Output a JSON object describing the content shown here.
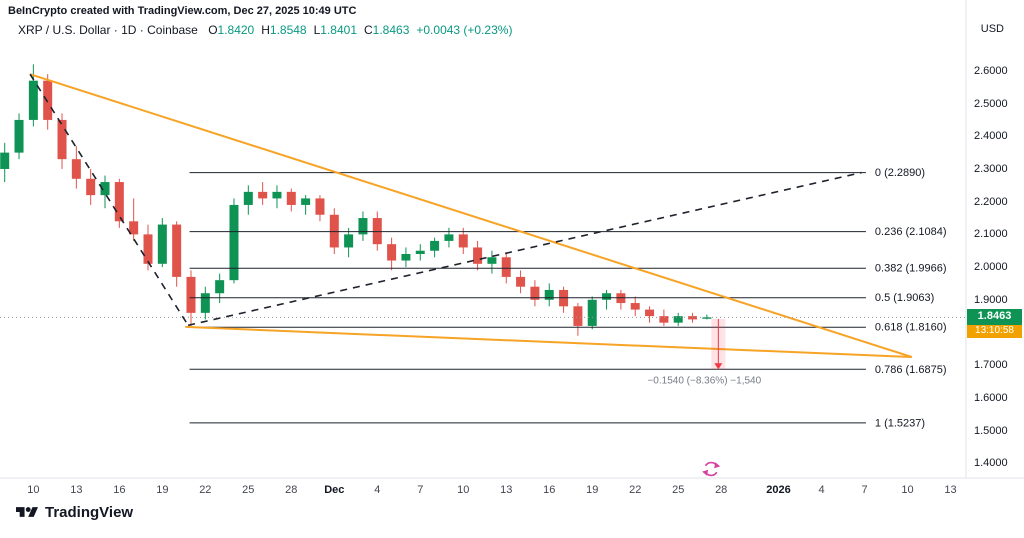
{
  "attribution": "BeInCrypto created with TradingView.com, Dec 27, 2025 10:49 UTC",
  "header": {
    "symbol_line": "XRP / U.S. Dollar · 1D · Coinbase",
    "ohlc": [
      {
        "k": "O",
        "v": "1.8420"
      },
      {
        "k": "H",
        "v": "1.8548"
      },
      {
        "k": "L",
        "v": "1.8401"
      },
      {
        "k": "C",
        "v": "1.8463"
      }
    ],
    "change": "+0.0043 (+0.23%)"
  },
  "axis": {
    "currency": "USD",
    "y_ticks": [
      "2.6000",
      "2.5000",
      "2.4000",
      "2.3000",
      "2.2000",
      "2.1000",
      "2.0000",
      "1.9000",
      "1.8000",
      "1.7000",
      "1.6000",
      "1.5000",
      "1.4000"
    ],
    "x_ticks": [
      {
        "idx": 2,
        "label": "10"
      },
      {
        "idx": 5,
        "label": "13"
      },
      {
        "idx": 8,
        "label": "16"
      },
      {
        "idx": 11,
        "label": "19"
      },
      {
        "idx": 14,
        "label": "22"
      },
      {
        "idx": 17,
        "label": "25"
      },
      {
        "idx": 20,
        "label": "28"
      },
      {
        "idx": 23,
        "label": "Dec",
        "bold": true
      },
      {
        "idx": 26,
        "label": "4"
      },
      {
        "idx": 29,
        "label": "7"
      },
      {
        "idx": 32,
        "label": "10"
      },
      {
        "idx": 35,
        "label": "13"
      },
      {
        "idx": 38,
        "label": "16"
      },
      {
        "idx": 41,
        "label": "19"
      },
      {
        "idx": 44,
        "label": "22"
      },
      {
        "idx": 47,
        "label": "25"
      },
      {
        "idx": 50,
        "label": "28"
      },
      {
        "idx": 54,
        "label": "2026",
        "bold": true
      },
      {
        "idx": 57,
        "label": "4"
      },
      {
        "idx": 60,
        "label": "7"
      },
      {
        "idx": 63,
        "label": "10"
      },
      {
        "idx": 66,
        "label": "13"
      }
    ]
  },
  "price_label": {
    "value": "1.8463",
    "countdown": "13:10:58"
  },
  "measurement": {
    "label": "−0.1540 (−8.36%) −1,540",
    "from": 1.8415,
    "to": 1.6875,
    "idx": 49.8
  },
  "footer": {
    "logo_text": "TradingView"
  },
  "chart_data": {
    "type": "candlestick",
    "title": "XRP / U.S. Dollar · 1D · Coinbase",
    "ylim": [
      1.355,
      2.725
    ],
    "last_price": 1.8463,
    "geometry": {
      "x0": 4.7,
      "step": 14.33,
      "top": 30,
      "bottom": 478,
      "plot_right": 965
    },
    "refresh_icon": {
      "idx": 49.3,
      "y": 469
    },
    "colors": {
      "up": "#0e9355",
      "down": "#e0534b",
      "fib": "#1e222d",
      "trend": "#f7a325",
      "dashed": "#1e222d",
      "last_line": "#9598a1",
      "measure": "#f23645",
      "refresh": "#d6409f",
      "text": "#131722",
      "muted": "#787b86",
      "badge_bg": "#0e9355",
      "countdown_bg": "#f2a200",
      "ohlc_green": "#089981"
    },
    "fib_x": [
      12.9,
      60.1
    ],
    "fib_levels": [
      {
        "label": "0 (2.2890)",
        "value": 2.289
      },
      {
        "label": "0.236 (2.1084)",
        "value": 2.1084
      },
      {
        "label": "0.382 (1.9966)",
        "value": 1.9966
      },
      {
        "label": "0.5 (1.9063)",
        "value": 1.9063
      },
      {
        "label": "0.618 (1.8160)",
        "value": 1.816
      },
      {
        "label": "0.786 (1.6875)",
        "value": 1.6875
      },
      {
        "label": "1 (1.5237)",
        "value": 1.5237
      }
    ],
    "trendlines": [
      {
        "name": "wedge-upper-trendline",
        "color": "trend",
        "width": 2,
        "dash": "",
        "points": [
          [
            1.77,
            2.59
          ],
          [
            63.3,
            1.725
          ]
        ]
      },
      {
        "name": "wedge-lower-trendline",
        "color": "trend",
        "width": 2,
        "dash": "",
        "points": [
          [
            12.6,
            1.817
          ],
          [
            63.3,
            1.725
          ]
        ]
      },
      {
        "name": "dashed-decline-line",
        "color": "dashed",
        "width": 1.6,
        "dash": "7 6",
        "points": [
          [
            1.77,
            2.59
          ],
          [
            12.8,
            1.822
          ]
        ]
      },
      {
        "name": "dashed-rise-line",
        "color": "dashed",
        "width": 1.6,
        "dash": "7 6",
        "points": [
          [
            12.8,
            1.822
          ],
          [
            59.8,
            2.289
          ]
        ]
      }
    ],
    "candles": [
      {
        "t": "Nov 8",
        "o": 2.3,
        "h": 2.38,
        "l": 2.26,
        "c": 2.35
      },
      {
        "t": "Nov 9",
        "o": 2.35,
        "h": 2.47,
        "l": 2.33,
        "c": 2.45
      },
      {
        "t": "Nov 10",
        "o": 2.45,
        "h": 2.62,
        "l": 2.43,
        "c": 2.57
      },
      {
        "t": "Nov 11",
        "o": 2.57,
        "h": 2.59,
        "l": 2.42,
        "c": 2.45
      },
      {
        "t": "Nov 12",
        "o": 2.45,
        "h": 2.47,
        "l": 2.3,
        "c": 2.33
      },
      {
        "t": "Nov 13",
        "o": 2.33,
        "h": 2.37,
        "l": 2.24,
        "c": 2.27
      },
      {
        "t": "Nov 14",
        "o": 2.27,
        "h": 2.3,
        "l": 2.19,
        "c": 2.22
      },
      {
        "t": "Nov 15",
        "o": 2.22,
        "h": 2.28,
        "l": 2.18,
        "c": 2.26
      },
      {
        "t": "Nov 16",
        "o": 2.26,
        "h": 2.27,
        "l": 2.12,
        "c": 2.14
      },
      {
        "t": "Nov 17",
        "o": 2.14,
        "h": 2.21,
        "l": 2.08,
        "c": 2.1
      },
      {
        "t": "Nov 18",
        "o": 2.1,
        "h": 2.13,
        "l": 1.99,
        "c": 2.01
      },
      {
        "t": "Nov 19",
        "o": 2.01,
        "h": 2.15,
        "l": 2.0,
        "c": 2.13
      },
      {
        "t": "Nov 20",
        "o": 2.13,
        "h": 2.14,
        "l": 1.94,
        "c": 1.97
      },
      {
        "t": "Nov 21",
        "o": 1.97,
        "h": 1.99,
        "l": 1.82,
        "c": 1.86
      },
      {
        "t": "Nov 22",
        "o": 1.86,
        "h": 1.94,
        "l": 1.84,
        "c": 1.92
      },
      {
        "t": "Nov 23",
        "o": 1.92,
        "h": 1.98,
        "l": 1.89,
        "c": 1.96
      },
      {
        "t": "Nov 24",
        "o": 1.96,
        "h": 2.21,
        "l": 1.95,
        "c": 2.19
      },
      {
        "t": "Nov 25",
        "o": 2.19,
        "h": 2.25,
        "l": 2.16,
        "c": 2.23
      },
      {
        "t": "Nov 26",
        "o": 2.23,
        "h": 2.26,
        "l": 2.19,
        "c": 2.21
      },
      {
        "t": "Nov 27",
        "o": 2.21,
        "h": 2.25,
        "l": 2.18,
        "c": 2.23
      },
      {
        "t": "Nov 28",
        "o": 2.23,
        "h": 2.24,
        "l": 2.17,
        "c": 2.19
      },
      {
        "t": "Nov 29",
        "o": 2.19,
        "h": 2.22,
        "l": 2.16,
        "c": 2.21
      },
      {
        "t": "Nov 30",
        "o": 2.21,
        "h": 2.22,
        "l": 2.14,
        "c": 2.16
      },
      {
        "t": "Dec 1",
        "o": 2.16,
        "h": 2.18,
        "l": 2.04,
        "c": 2.06
      },
      {
        "t": "Dec 2",
        "o": 2.06,
        "h": 2.12,
        "l": 2.03,
        "c": 2.1
      },
      {
        "t": "Dec 3",
        "o": 2.1,
        "h": 2.17,
        "l": 2.08,
        "c": 2.15
      },
      {
        "t": "Dec 4",
        "o": 2.15,
        "h": 2.17,
        "l": 2.05,
        "c": 2.07
      },
      {
        "t": "Dec 5",
        "o": 2.07,
        "h": 2.09,
        "l": 1.99,
        "c": 2.02
      },
      {
        "t": "Dec 6",
        "o": 2.02,
        "h": 2.06,
        "l": 2.0,
        "c": 2.04
      },
      {
        "t": "Dec 7",
        "o": 2.04,
        "h": 2.07,
        "l": 2.02,
        "c": 2.05
      },
      {
        "t": "Dec 8",
        "o": 2.05,
        "h": 2.09,
        "l": 2.03,
        "c": 2.08
      },
      {
        "t": "Dec 9",
        "o": 2.08,
        "h": 2.12,
        "l": 2.06,
        "c": 2.1
      },
      {
        "t": "Dec 10",
        "o": 2.1,
        "h": 2.12,
        "l": 2.04,
        "c": 2.06
      },
      {
        "t": "Dec 11",
        "o": 2.06,
        "h": 2.08,
        "l": 1.99,
        "c": 2.01
      },
      {
        "t": "Dec 12",
        "o": 2.01,
        "h": 2.05,
        "l": 1.98,
        "c": 2.03
      },
      {
        "t": "Dec 13",
        "o": 2.03,
        "h": 2.04,
        "l": 1.95,
        "c": 1.97
      },
      {
        "t": "Dec 14",
        "o": 1.97,
        "h": 1.99,
        "l": 1.92,
        "c": 1.94
      },
      {
        "t": "Dec 15",
        "o": 1.94,
        "h": 1.96,
        "l": 1.88,
        "c": 1.9
      },
      {
        "t": "Dec 16",
        "o": 1.9,
        "h": 1.95,
        "l": 1.88,
        "c": 1.93
      },
      {
        "t": "Dec 17",
        "o": 1.93,
        "h": 1.94,
        "l": 1.86,
        "c": 1.88
      },
      {
        "t": "Dec 18",
        "o": 1.88,
        "h": 1.89,
        "l": 1.79,
        "c": 1.82
      },
      {
        "t": "Dec 19",
        "o": 1.82,
        "h": 1.91,
        "l": 1.81,
        "c": 1.9
      },
      {
        "t": "Dec 20",
        "o": 1.9,
        "h": 1.93,
        "l": 1.87,
        "c": 1.92
      },
      {
        "t": "Dec 21",
        "o": 1.92,
        "h": 1.93,
        "l": 1.87,
        "c": 1.89
      },
      {
        "t": "Dec 22",
        "o": 1.89,
        "h": 1.91,
        "l": 1.85,
        "c": 1.87
      },
      {
        "t": "Dec 23",
        "o": 1.87,
        "h": 1.88,
        "l": 1.83,
        "c": 1.85
      },
      {
        "t": "Dec 24",
        "o": 1.85,
        "h": 1.87,
        "l": 1.82,
        "c": 1.83
      },
      {
        "t": "Dec 25",
        "o": 1.83,
        "h": 1.86,
        "l": 1.82,
        "c": 1.85
      },
      {
        "t": "Dec 26",
        "o": 1.85,
        "h": 1.86,
        "l": 1.83,
        "c": 1.84
      },
      {
        "t": "Dec 27",
        "o": 1.842,
        "h": 1.8548,
        "l": 1.8401,
        "c": 1.8463
      }
    ]
  }
}
